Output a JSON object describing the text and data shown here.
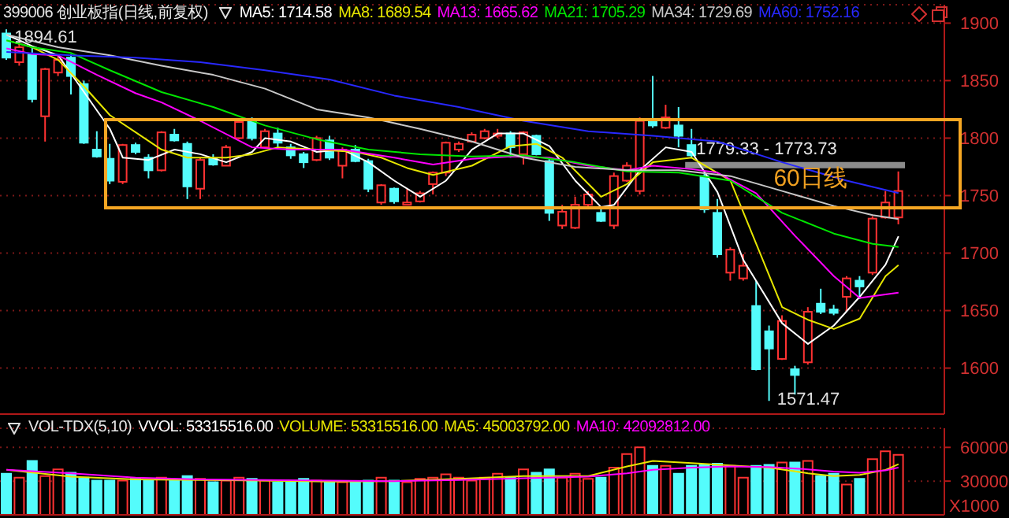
{
  "chart_data": [
    {
      "type": "candlestick",
      "title": "399006 创业板指(日线,前复权)",
      "legend": "top right",
      "tick_labels": "y",
      "grid": "y",
      "categories": [
        null,
        null,
        null,
        null,
        null,
        null,
        null,
        null,
        null,
        null,
        null,
        null,
        null,
        null,
        null,
        null,
        null,
        null,
        null,
        null,
        null,
        null,
        null,
        null,
        null,
        null,
        null,
        null,
        null,
        null,
        null,
        null,
        null,
        null,
        null,
        null,
        null,
        null,
        null,
        null,
        null,
        null,
        null,
        null,
        null,
        null,
        null,
        null,
        null,
        null,
        null,
        null,
        null,
        null,
        null,
        null,
        null,
        null,
        null,
        null,
        null,
        null,
        null,
        null,
        null,
        null,
        null,
        null,
        null,
        null
      ],
      "ohlc": [
        [
          1891,
          1894.61,
          1868,
          1870
        ],
        [
          1866,
          1883,
          1863,
          1879
        ],
        [
          1873,
          1879,
          1831,
          1834
        ],
        [
          1819,
          1861,
          1797,
          1860
        ],
        [
          1857,
          1873,
          1854,
          1868
        ],
        [
          1870,
          1873,
          1838,
          1854
        ],
        [
          1847,
          1850,
          1795,
          1796
        ],
        [
          1790,
          1806,
          1783,
          1784
        ],
        [
          1782,
          1795,
          1760,
          1763
        ],
        [
          1762,
          1795,
          1760,
          1794
        ],
        [
          1794,
          1796,
          1786,
          1788
        ],
        [
          1783,
          1786,
          1765,
          1772
        ],
        [
          1772,
          1806,
          1771,
          1805
        ],
        [
          1803,
          1808,
          1797,
          1798
        ],
        [
          1795,
          1797,
          1747,
          1758
        ],
        [
          1756,
          1783,
          1747,
          1781
        ],
        [
          1782,
          1786,
          1776,
          1777
        ],
        [
          1776,
          1794,
          1776,
          1792
        ],
        [
          1800,
          1815,
          1799,
          1814
        ],
        [
          1815,
          1818,
          1798,
          1800
        ],
        [
          1792,
          1808,
          1791,
          1806
        ],
        [
          1804,
          1809,
          1792,
          1796
        ],
        [
          1792,
          1795,
          1782,
          1785
        ],
        [
          1786,
          1788,
          1774,
          1779
        ],
        [
          1781,
          1802,
          1780,
          1800
        ],
        [
          1798,
          1802,
          1781,
          1783
        ],
        [
          1776,
          1792,
          1765,
          1790
        ],
        [
          1790,
          1794,
          1779,
          1780
        ],
        [
          1780,
          1782,
          1753,
          1756
        ],
        [
          1744,
          1760,
          1742,
          1759
        ],
        [
          1756,
          1757,
          1743,
          1745
        ],
        [
          1742,
          1756,
          1742,
          1744
        ],
        [
          1745,
          1754,
          1744,
          1752
        ],
        [
          1760,
          1771,
          1751,
          1770
        ],
        [
          1770,
          1797,
          1767,
          1796
        ],
        [
          1790,
          1797,
          1788,
          1795
        ],
        [
          1797,
          1805,
          1796,
          1803
        ],
        [
          1800,
          1808,
          1799,
          1806
        ],
        [
          1802,
          1808,
          1800,
          1804
        ],
        [
          1804,
          1806,
          1783,
          1792
        ],
        [
          1786,
          1806,
          1777,
          1805
        ],
        [
          1802,
          1803,
          1785,
          1786
        ],
        [
          1780,
          1782,
          1728,
          1735
        ],
        [
          1724,
          1742,
          1721,
          1736
        ],
        [
          1722,
          1749,
          1721,
          1742
        ],
        [
          1742,
          1754,
          1740,
          1751
        ],
        [
          1735,
          1738,
          1727,
          1728
        ],
        [
          1724,
          1770,
          1721,
          1767
        ],
        [
          1763,
          1779,
          1762,
          1776
        ],
        [
          1754,
          1818,
          1751,
          1815
        ],
        [
          1815,
          1854,
          1809,
          1811
        ],
        [
          1809,
          1829,
          1808,
          1818
        ],
        [
          1811,
          1827,
          1792,
          1802
        ],
        [
          1794,
          1808,
          1783,
          1785
        ],
        [
          1767,
          1770,
          1735,
          1738
        ],
        [
          1735,
          1747,
          1696,
          1699
        ],
        [
          1683,
          1705,
          1676,
          1703
        ],
        [
          1678,
          1699,
          1676,
          1689
        ],
        [
          1654,
          1676,
          1598,
          1599
        ],
        [
          1632,
          1637,
          1571.47,
          1617
        ],
        [
          1608,
          1646,
          1607,
          1641
        ],
        [
          1599,
          1602,
          1577,
          1594
        ],
        [
          1605,
          1653,
          1603,
          1649
        ],
        [
          1656,
          1669,
          1647,
          1649
        ],
        [
          1651,
          1655,
          1646,
          1648
        ],
        [
          1662,
          1680,
          1649,
          1678
        ],
        [
          1676,
          1680,
          1660,
          1671
        ],
        [
          1683,
          1732,
          1681,
          1730
        ],
        [
          1731,
          1754,
          1730,
          1744
        ],
        [
          1731,
          1771,
          1725,
          1754
        ]
      ],
      "colors": [
        "#54fcfc",
        "#ff3232",
        "#54fcfc",
        "#ff3232",
        "#ff3232",
        "#54fcfc",
        "#54fcfc",
        "#54fcfc",
        "#54fcfc",
        "#ff3232",
        "#54fcfc",
        "#54fcfc",
        "#ff3232",
        "#54fcfc",
        "#54fcfc",
        "#ff3232",
        "#54fcfc",
        "#ff3232",
        "#ff3232",
        "#54fcfc",
        "#ff3232",
        "#54fcfc",
        "#54fcfc",
        "#54fcfc",
        "#ff3232",
        "#54fcfc",
        "#ff3232",
        "#54fcfc",
        "#54fcfc",
        "#ff3232",
        "#54fcfc",
        "#ff3232",
        "#ff3232",
        "#ff3232",
        "#ff3232",
        "#ff3232",
        "#ff3232",
        "#ff3232",
        "#ff3232",
        "#54fcfc",
        "#ff3232",
        "#54fcfc",
        "#54fcfc",
        "#ff3232",
        "#ff3232",
        "#ff3232",
        "#54fcfc",
        "#ff3232",
        "#ff3232",
        "#ff3232",
        "#54fcfc",
        "#ff3232",
        "#54fcfc",
        "#54fcfc",
        "#54fcfc",
        "#54fcfc",
        "#ff3232",
        "#ff3232",
        "#54fcfc",
        "#54fcfc",
        "#ff3232",
        "#54fcfc",
        "#ff3232",
        "#54fcfc",
        "#54fcfc",
        "#ff3232",
        "#54fcfc",
        "#ff3232",
        "#ff3232",
        "#ff3232"
      ],
      "series": [
        {
          "name": "MA5: 1714.58",
          "type": "line",
          "color": "#ffffff",
          "values": [
            1890,
            null,
            1880,
            null,
            1872,
            null,
            1840,
            null,
            1808,
            1783,
            null,
            1781,
            null,
            1790,
            null,
            1786,
            null,
            1779,
            null,
            1788,
            1800,
            null,
            1797,
            null,
            1788,
            null,
            1790,
            null,
            1779,
            null,
            1763,
            null,
            1749,
            null,
            1763,
            null,
            1790,
            null,
            1804,
            null,
            1804,
            null,
            1793,
            null,
            1763,
            null,
            1740,
            1742,
            null,
            1772,
            null,
            1792,
            null,
            1788,
            null,
            1753,
            null,
            1694,
            null,
            null,
            1639,
            null,
            1621,
            null,
            1637,
            null,
            1662,
            null,
            1690,
            1714.58
          ]
        },
        {
          "name": "MA8: 1689.54",
          "type": "line",
          "color": "#e6e600",
          "values": [
            1885,
            null,
            1879,
            null,
            1868,
            null,
            1845,
            null,
            1820,
            null,
            1805,
            null,
            1790,
            null,
            1783,
            null,
            null,
            1783,
            null,
            1786,
            null,
            1792,
            null,
            null,
            1790,
            null,
            null,
            1788,
            null,
            1783,
            null,
            1774,
            null,
            1768,
            null,
            null,
            1776,
            null,
            null,
            1793,
            null,
            1795,
            null,
            1783,
            null,
            null,
            1749,
            null,
            1760,
            null,
            1779,
            null,
            null,
            1783,
            null,
            null,
            1763,
            null,
            1708,
            null,
            1653,
            null,
            1642,
            null,
            1634,
            null,
            1643,
            null,
            1680,
            1689.54
          ]
        },
        {
          "name": "MA13: 1665.62",
          "type": "line",
          "color": "#ff00ff",
          "values": [
            1878,
            null,
            1873,
            null,
            1872,
            null,
            null,
            1855,
            null,
            null,
            1839,
            null,
            1831,
            null,
            null,
            1815,
            null,
            null,
            null,
            1792,
            null,
            null,
            1790,
            null,
            null,
            null,
            1790,
            null,
            null,
            null,
            1783,
            null,
            null,
            1777,
            null,
            null,
            1782,
            null,
            null,
            1784,
            null,
            null,
            1783,
            null,
            null,
            1776,
            null,
            null,
            1772,
            null,
            1776,
            null,
            null,
            1773,
            null,
            1770,
            null,
            null,
            1752,
            null,
            null,
            1715,
            null,
            null,
            1680,
            null,
            1661,
            null,
            null,
            1665.62
          ]
        },
        {
          "name": "MA21: 1705.29",
          "type": "line",
          "color": "#00e600",
          "values": [
            1885,
            null,
            1879,
            null,
            null,
            1874,
            null,
            null,
            1859,
            null,
            null,
            null,
            1840,
            null,
            null,
            null,
            1827,
            null,
            null,
            null,
            1811,
            null,
            null,
            null,
            1799,
            null,
            null,
            null,
            1790,
            null,
            null,
            null,
            1786,
            null,
            null,
            null,
            1784,
            null,
            null,
            null,
            1785,
            null,
            null,
            null,
            1779,
            null,
            null,
            null,
            1771,
            null,
            null,
            null,
            1770,
            null,
            null,
            null,
            1763,
            null,
            null,
            null,
            1735,
            null,
            null,
            null,
            1717,
            null,
            null,
            1708,
            null,
            1705.29
          ]
        },
        {
          "name": "MA34: 1729.69",
          "type": "line",
          "color": "#c8c8c8",
          "values": [
            1890,
            null,
            null,
            null,
            1879,
            null,
            null,
            null,
            1872,
            null,
            null,
            null,
            1863,
            null,
            null,
            null,
            1855,
            null,
            null,
            null,
            1843,
            null,
            null,
            null,
            1825,
            null,
            null,
            null,
            1818,
            null,
            null,
            null,
            1808,
            null,
            null,
            null,
            1797,
            null,
            null,
            null,
            1783,
            null,
            null,
            null,
            1775,
            null,
            null,
            null,
            1772,
            null,
            null,
            null,
            1772,
            null,
            null,
            null,
            1767,
            null,
            null,
            null,
            1754,
            null,
            null,
            null,
            1741,
            null,
            null,
            1733,
            null,
            1729.69
          ]
        },
        {
          "name": "MA60: 1752.16",
          "type": "line",
          "color": "#2828ff",
          "values": [
            1875,
            null,
            null,
            null,
            null,
            1872,
            null,
            null,
            null,
            null,
            1870,
            null,
            null,
            null,
            null,
            1866,
            null,
            null,
            null,
            null,
            1859,
            null,
            null,
            null,
            null,
            1851,
            null,
            null,
            null,
            null,
            1837,
            null,
            null,
            null,
            null,
            1827,
            null,
            null,
            null,
            null,
            1815,
            null,
            null,
            null,
            null,
            1806,
            null,
            null,
            null,
            null,
            1802,
            null,
            null,
            null,
            null,
            1797,
            null,
            null,
            null,
            null,
            1779,
            null,
            null,
            null,
            null,
            1763,
            null,
            null,
            null,
            1752.16
          ]
        }
      ],
      "ylim": [
        1560,
        1916
      ],
      "yticks": [
        1600,
        1650,
        1700,
        1750,
        1800,
        1850,
        1900
      ],
      "bands": [
        {
          "axis": "y",
          "from": 1773.73,
          "to": 1779.33,
          "label": "1779.33 - 1773.73",
          "color": "#8c8c8c"
        }
      ],
      "annotations": [
        "1894.61",
        "1571.47",
        "60日线"
      ]
    },
    {
      "type": "bar",
      "title": "VOL-TDX(5,10)",
      "legend": "top right",
      "tick_labels": "y",
      "grid": "y",
      "ylabel": "X1000",
      "categories": [
        null,
        null,
        null,
        null,
        null,
        null,
        null,
        null,
        null,
        null,
        null,
        null,
        null,
        null,
        null,
        null,
        null,
        null,
        null,
        null,
        null,
        null,
        null,
        null,
        null,
        null,
        null,
        null,
        null,
        null,
        null,
        null,
        null,
        null,
        null,
        null,
        null,
        null,
        null,
        null,
        null,
        null,
        null,
        null,
        null,
        null,
        null,
        null,
        null,
        null,
        null,
        null,
        null,
        null,
        null,
        null,
        null,
        null,
        null,
        null,
        null,
        null,
        null,
        null,
        null,
        null,
        null,
        null,
        null,
        null
      ],
      "values": [
        36500,
        33000,
        48000,
        34500,
        40500,
        37500,
        33000,
        30500,
        30500,
        30500,
        32000,
        30500,
        33000,
        30500,
        34500,
        32000,
        29000,
        30500,
        33000,
        32000,
        30500,
        29000,
        29000,
        32000,
        30500,
        29000,
        29000,
        29000,
        30500,
        33000,
        30500,
        29000,
        32000,
        33000,
        36000,
        33000,
        30500,
        33000,
        36500,
        33000,
        40500,
        37500,
        40500,
        33000,
        36500,
        32000,
        33000,
        42000,
        54000,
        60000,
        43500,
        43500,
        36500,
        43500,
        44500,
        45500,
        43500,
        33000,
        43500,
        44500,
        46500,
        46500,
        48000,
        34500,
        36500,
        27000,
        32000,
        49500,
        56500,
        53315.516
      ],
      "colors": [
        "#54fcfc",
        "#ff3232",
        "#54fcfc",
        "#ff3232",
        "#ff3232",
        "#54fcfc",
        "#54fcfc",
        "#54fcfc",
        "#54fcfc",
        "#ff3232",
        "#54fcfc",
        "#54fcfc",
        "#ff3232",
        "#54fcfc",
        "#54fcfc",
        "#ff3232",
        "#54fcfc",
        "#ff3232",
        "#ff3232",
        "#54fcfc",
        "#ff3232",
        "#54fcfc",
        "#54fcfc",
        "#54fcfc",
        "#ff3232",
        "#54fcfc",
        "#ff3232",
        "#54fcfc",
        "#54fcfc",
        "#ff3232",
        "#54fcfc",
        "#ff3232",
        "#ff3232",
        "#ff3232",
        "#ff3232",
        "#ff3232",
        "#ff3232",
        "#ff3232",
        "#ff3232",
        "#54fcfc",
        "#ff3232",
        "#54fcfc",
        "#54fcfc",
        "#ff3232",
        "#ff3232",
        "#ff3232",
        "#54fcfc",
        "#ff3232",
        "#ff3232",
        "#ff3232",
        "#54fcfc",
        "#ff3232",
        "#54fcfc",
        "#54fcfc",
        "#54fcfc",
        "#54fcfc",
        "#ff3232",
        "#ff3232",
        "#54fcfc",
        "#54fcfc",
        "#ff3232",
        "#54fcfc",
        "#ff3232",
        "#54fcfc",
        "#54fcfc",
        "#ff3232",
        "#54fcfc",
        "#ff3232",
        "#ff3232",
        "#ff3232"
      ],
      "series": [
        {
          "name": "MA5: 45003792.00",
          "type": "line",
          "color": "#e6e600",
          "values": [
            40000,
            null,
            null,
            null,
            null,
            34000,
            null,
            null,
            null,
            null,
            31500,
            null,
            null,
            null,
            null,
            31000,
            null,
            null,
            null,
            null,
            30500,
            null,
            null,
            null,
            null,
            29500,
            null,
            null,
            null,
            null,
            30000,
            null,
            null,
            null,
            null,
            32000,
            null,
            null,
            null,
            null,
            34500,
            null,
            null,
            null,
            null,
            34500,
            null,
            null,
            43000,
            null,
            48000,
            null,
            null,
            46000,
            null,
            null,
            44000,
            null,
            null,
            42000,
            null,
            null,
            37000,
            null,
            34500,
            null,
            35500,
            null,
            40000,
            45003.792
          ]
        },
        {
          "name": "MA10: 42092812.00",
          "type": "line",
          "color": "#ff00ff",
          "values": [
            40000,
            null,
            null,
            null,
            null,
            37000,
            null,
            null,
            null,
            null,
            33000,
            null,
            null,
            null,
            null,
            31500,
            null,
            null,
            null,
            null,
            31000,
            null,
            null,
            null,
            null,
            30500,
            null,
            null,
            null,
            null,
            30000,
            null,
            null,
            null,
            null,
            31000,
            null,
            null,
            null,
            null,
            32500,
            null,
            null,
            null,
            null,
            34000,
            null,
            null,
            37000,
            null,
            40000,
            null,
            null,
            42000,
            null,
            null,
            43000,
            null,
            null,
            42500,
            null,
            null,
            40500,
            null,
            38500,
            null,
            37500,
            null,
            39500,
            42092.812
          ]
        }
      ],
      "ylim": [
        0,
        77000
      ],
      "yticks": [
        30000,
        60000
      ],
      "annotations": [
        "VVOL: 53315516.00",
        "VOLUME: 53315516.00"
      ]
    }
  ]
}
